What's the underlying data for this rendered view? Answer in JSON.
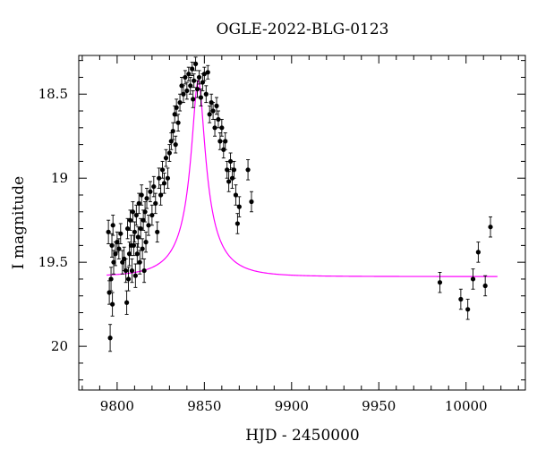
{
  "chart_data": {
    "type": "scatter",
    "title": "OGLE-2022-BLG-0123",
    "xlabel": "HJD - 2450000",
    "ylabel": "I magnitude",
    "xlim": [
      9778,
      10034
    ],
    "ylim": [
      20.26,
      18.27
    ],
    "y_inverted": true,
    "x_ticks": [
      9800,
      9850,
      9900,
      9950,
      10000
    ],
    "x_tick_labels": [
      "9800",
      "9850",
      "9900",
      "9950",
      "10000"
    ],
    "y_ticks": [
      18.5,
      19,
      19.5,
      20
    ],
    "y_tick_labels": [
      "18.5",
      "19",
      "19.5",
      "20"
    ],
    "grid": false,
    "colors": {
      "data": "#000000",
      "model": "#ff00ff"
    },
    "series": [
      {
        "name": "",
        "points": [
          [
            9795,
            19.32,
            0.07
          ],
          [
            9795.5,
            19.68,
            0.07
          ],
          [
            9796,
            19.95,
            0.08
          ],
          [
            9796.5,
            19.6,
            0.07
          ],
          [
            9797,
            19.4,
            0.07
          ],
          [
            9797.3,
            19.75,
            0.07
          ],
          [
            9797.6,
            19.28,
            0.06
          ],
          [
            9798,
            19.5,
            0.07
          ],
          [
            9799,
            19.45,
            0.07
          ],
          [
            9800,
            19.38,
            0.06
          ],
          [
            9801,
            19.42,
            0.06
          ],
          [
            9802,
            19.33,
            0.06
          ],
          [
            9803,
            19.5,
            0.07
          ],
          [
            9804,
            19.48,
            0.07
          ],
          [
            9805,
            19.55,
            0.07
          ],
          [
            9805.5,
            19.74,
            0.07
          ],
          [
            9806,
            19.3,
            0.06
          ],
          [
            9806.5,
            19.6,
            0.07
          ],
          [
            9807,
            19.45,
            0.07
          ],
          [
            9807.5,
            19.25,
            0.06
          ],
          [
            9808,
            19.4,
            0.06
          ],
          [
            9808.5,
            19.55,
            0.07
          ],
          [
            9809,
            19.2,
            0.06
          ],
          [
            9809.5,
            19.4,
            0.06
          ],
          [
            9810,
            19.32,
            0.06
          ],
          [
            9810.5,
            19.58,
            0.07
          ],
          [
            9811,
            19.22,
            0.06
          ],
          [
            9811.5,
            19.45,
            0.06
          ],
          [
            9812,
            19.35,
            0.06
          ],
          [
            9812.5,
            19.15,
            0.06
          ],
          [
            9813,
            19.5,
            0.07
          ],
          [
            9813.5,
            19.3,
            0.06
          ],
          [
            9814,
            19.1,
            0.06
          ],
          [
            9814.5,
            19.42,
            0.06
          ],
          [
            9815,
            19.25,
            0.06
          ],
          [
            9815.5,
            19.55,
            0.07
          ],
          [
            9816,
            19.2,
            0.06
          ],
          [
            9816.5,
            19.38,
            0.06
          ],
          [
            9817,
            19.12,
            0.06
          ],
          [
            9818,
            19.28,
            0.06
          ],
          [
            9819,
            19.08,
            0.06
          ],
          [
            9820,
            19.22,
            0.06
          ],
          [
            9821,
            19.05,
            0.06
          ],
          [
            9822,
            19.15,
            0.06
          ],
          [
            9823,
            19.32,
            0.06
          ],
          [
            9824,
            19.0,
            0.06
          ],
          [
            9825,
            19.1,
            0.06
          ],
          [
            9826,
            18.95,
            0.05
          ],
          [
            9827,
            19.03,
            0.06
          ],
          [
            9828,
            18.88,
            0.05
          ],
          [
            9829,
            19.0,
            0.06
          ],
          [
            9830,
            18.85,
            0.05
          ],
          [
            9831,
            18.78,
            0.05
          ],
          [
            9832,
            18.72,
            0.05
          ],
          [
            9833,
            18.62,
            0.05
          ],
          [
            9833.5,
            18.8,
            0.05
          ],
          [
            9834,
            18.58,
            0.05
          ],
          [
            9835,
            18.67,
            0.05
          ],
          [
            9836,
            18.55,
            0.05
          ],
          [
            9837,
            18.45,
            0.05
          ],
          [
            9838,
            18.5,
            0.05
          ],
          [
            9839,
            18.4,
            0.04
          ],
          [
            9840,
            18.48,
            0.05
          ],
          [
            9841,
            18.38,
            0.04
          ],
          [
            9842,
            18.45,
            0.05
          ],
          [
            9843,
            18.35,
            0.04
          ],
          [
            9843.5,
            18.53,
            0.05
          ],
          [
            9844,
            18.42,
            0.04
          ],
          [
            9845,
            18.32,
            0.04
          ],
          [
            9846,
            18.47,
            0.05
          ],
          [
            9847,
            18.4,
            0.04
          ],
          [
            9848,
            18.52,
            0.05
          ],
          [
            9849,
            18.43,
            0.05
          ],
          [
            9850,
            18.38,
            0.04
          ],
          [
            9851,
            18.5,
            0.05
          ],
          [
            9852,
            18.37,
            0.04
          ],
          [
            9853,
            18.62,
            0.05
          ],
          [
            9854,
            18.55,
            0.05
          ],
          [
            9855,
            18.6,
            0.05
          ],
          [
            9856,
            18.7,
            0.05
          ],
          [
            9857,
            18.57,
            0.05
          ],
          [
            9858,
            18.65,
            0.05
          ],
          [
            9859,
            18.78,
            0.05
          ],
          [
            9860,
            18.7,
            0.05
          ],
          [
            9861,
            18.83,
            0.05
          ],
          [
            9862,
            18.78,
            0.05
          ],
          [
            9863,
            18.95,
            0.05
          ],
          [
            9864,
            19.02,
            0.06
          ],
          [
            9865,
            18.9,
            0.05
          ],
          [
            9866,
            19.0,
            0.06
          ],
          [
            9867,
            18.95,
            0.05
          ],
          [
            9868,
            19.1,
            0.06
          ],
          [
            9869,
            19.27,
            0.06
          ],
          [
            9870,
            19.17,
            0.06
          ],
          [
            9875,
            18.95,
            0.06
          ],
          [
            9877,
            19.14,
            0.06
          ],
          [
            9985,
            19.62,
            0.06
          ],
          [
            9997,
            19.72,
            0.06
          ],
          [
            10001,
            19.78,
            0.06
          ],
          [
            10004,
            19.6,
            0.06
          ],
          [
            10007,
            19.44,
            0.06
          ],
          [
            10011,
            19.64,
            0.06
          ],
          [
            10014,
            19.29,
            0.06
          ]
        ]
      }
    ],
    "model": {
      "name": "",
      "t0": 9846.5,
      "tE": 22,
      "u0": 0.175,
      "base_mag": 19.585,
      "peak_mag": 18.42,
      "x_range": [
        9794,
        10018
      ]
    }
  }
}
